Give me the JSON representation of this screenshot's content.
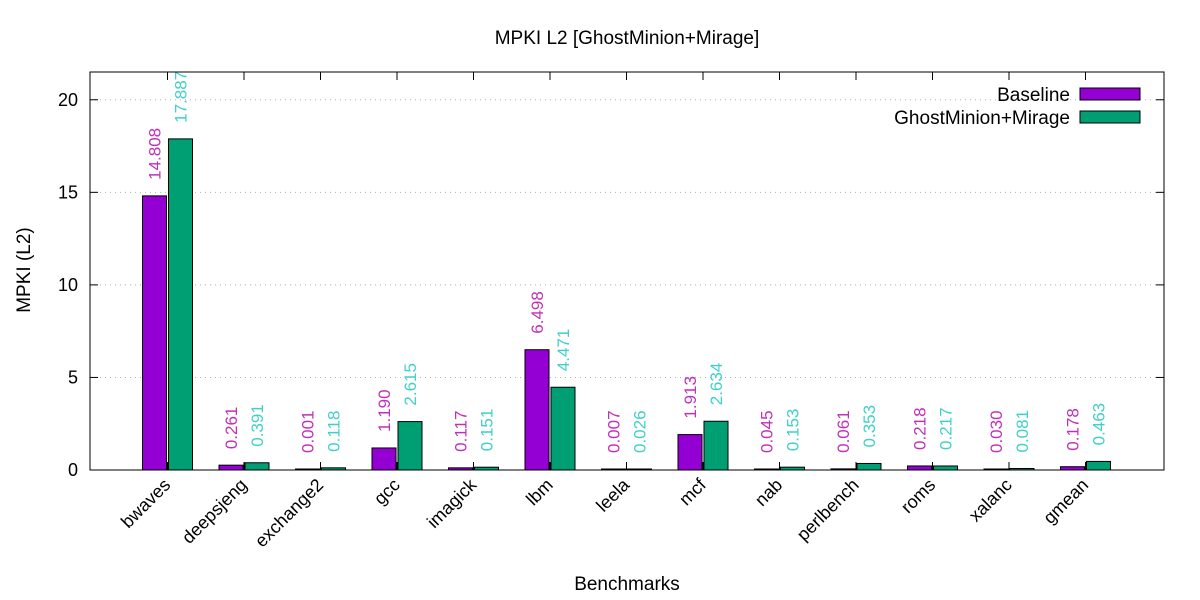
{
  "chart_data": {
    "type": "bar",
    "title": "MPKI L2 [GhostMinion+Mirage]",
    "xlabel": "Benchmarks",
    "ylabel": "MPKI (L2)",
    "ylim": [
      0,
      21.5
    ],
    "yticks": [
      0,
      5,
      10,
      15,
      20
    ],
    "grid": "horizontal dotted",
    "legend_position": "top-right",
    "categories": [
      "bwaves",
      "deepsjeng",
      "exchange2",
      "gcc",
      "imagick",
      "lbm",
      "leela",
      "mcf",
      "nab",
      "perlbench",
      "roms",
      "xalanc",
      "gmean"
    ],
    "series": [
      {
        "name": "Baseline",
        "color": "#9400d3",
        "label_color": "#c030b8",
        "values": [
          14.808,
          0.261,
          0.001,
          1.19,
          0.117,
          6.498,
          0.007,
          1.913,
          0.045,
          0.061,
          0.218,
          0.03,
          0.178
        ],
        "labels": [
          "14.808",
          "0.261",
          "0.001",
          "1.190",
          "0.117",
          "6.498",
          "0.007",
          "1.913",
          "0.045",
          "0.061",
          "0.218",
          "0.030",
          "0.178"
        ]
      },
      {
        "name": "GhostMinion+Mirage",
        "color": "#009e73",
        "label_color": "#40d0c8",
        "values": [
          17.887,
          0.391,
          0.118,
          2.615,
          0.151,
          4.471,
          0.026,
          2.634,
          0.153,
          0.353,
          0.217,
          0.081,
          0.463
        ],
        "labels": [
          "17.887",
          "0.391",
          "0.118",
          "2.615",
          "0.151",
          "4.471",
          "0.026",
          "2.634",
          "0.153",
          "0.353",
          "0.217",
          "0.081",
          "0.463"
        ]
      }
    ]
  }
}
